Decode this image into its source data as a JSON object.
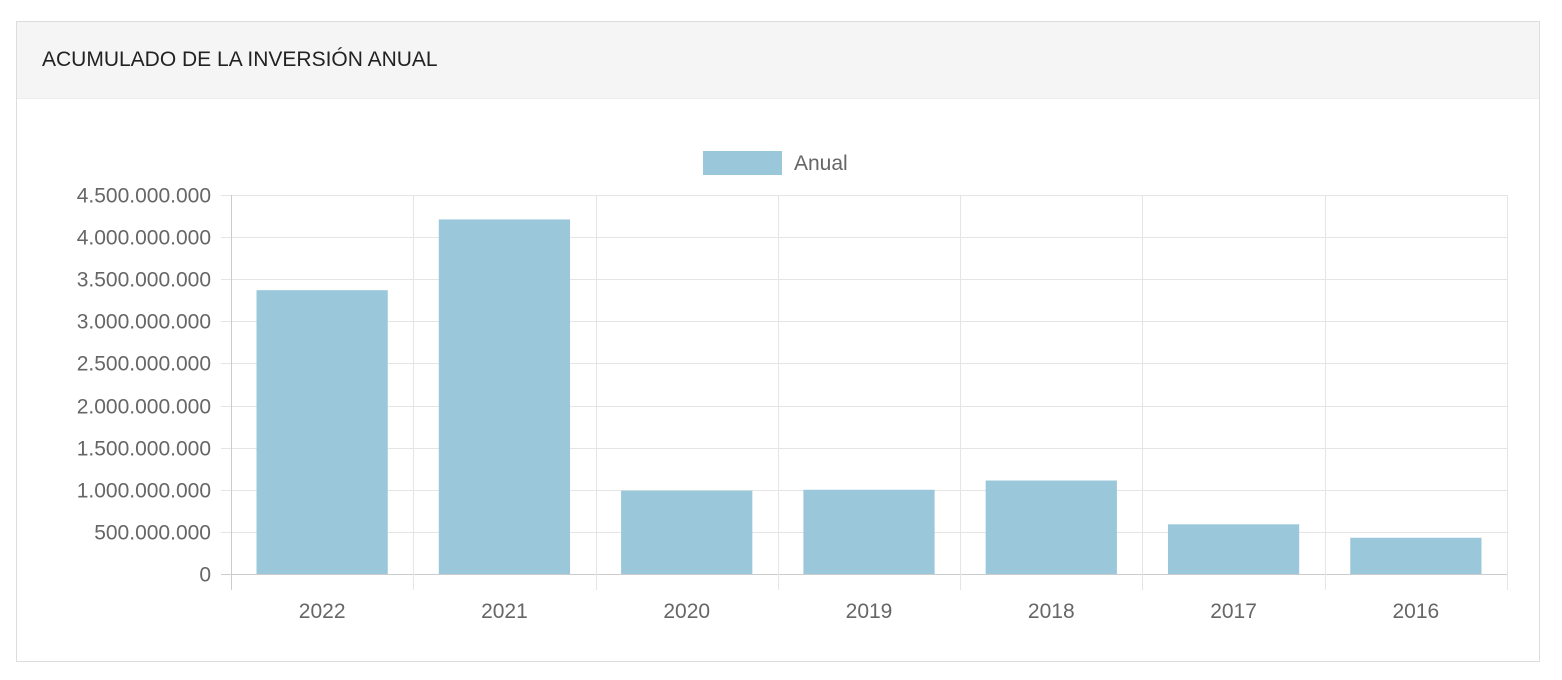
{
  "panel": {
    "title": "ACUMULADO DE LA INVERSIÓN ANUAL"
  },
  "chart_data": {
    "type": "bar",
    "categories": [
      "2022",
      "2021",
      "2020",
      "2019",
      "2018",
      "2017",
      "2016"
    ],
    "series": [
      {
        "name": "Anual",
        "color": "#9ac8da",
        "values": [
          3370000000,
          4210000000,
          990000000,
          1000000000,
          1110000000,
          590000000,
          430000000
        ]
      }
    ],
    "ylim": [
      0,
      4500000000
    ],
    "yticks": [
      0,
      500000000,
      1000000000,
      1500000000,
      2000000000,
      2500000000,
      3000000000,
      3500000000,
      4000000000,
      4500000000
    ],
    "ytick_labels": [
      "0",
      "500.000.000",
      "1.000.000.000",
      "1.500.000.000",
      "2.000.000.000",
      "2.500.000.000",
      "3.000.000.000",
      "3.500.000.000",
      "4.000.000.000",
      "4.500.000.000"
    ],
    "grid": true,
    "legend_position": "top-center",
    "grid_color": "#e5e5e5",
    "axis_color": "#cccccc"
  }
}
